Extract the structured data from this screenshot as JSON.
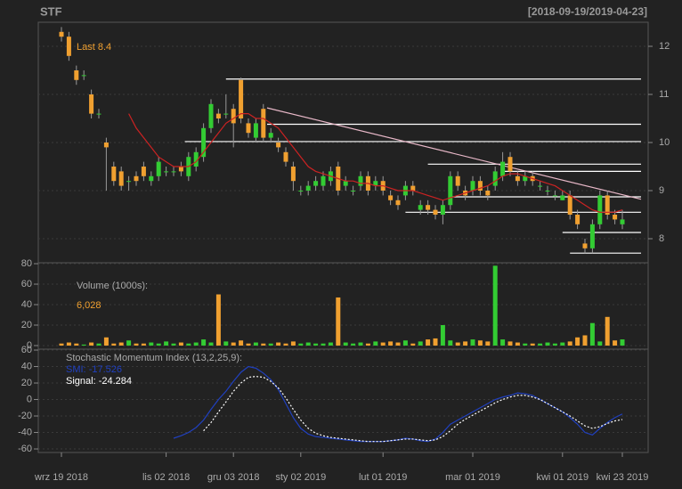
{
  "chart_data": [
    {
      "type": "candlestick",
      "title": "STF",
      "subtitle": "[2018-09-19/2019-04-23]",
      "categories": [
        "wrz 19 2018",
        null,
        null,
        null,
        null,
        null,
        null,
        null,
        null,
        null,
        null,
        null,
        null,
        null,
        "lis 02 2018",
        null,
        null,
        null,
        null,
        null,
        null,
        null,
        null,
        "gru 03 2018",
        null,
        null,
        null,
        null,
        null,
        null,
        null,
        null,
        "sty 02 2019",
        null,
        null,
        null,
        null,
        null,
        null,
        null,
        null,
        null,
        null,
        "lut 01 2019",
        null,
        null,
        null,
        null,
        null,
        null,
        null,
        null,
        null,
        null,
        null,
        "mar 01 2019",
        null,
        null,
        null,
        null,
        null,
        null,
        null,
        null,
        null,
        null,
        null,
        "kwi 01 2019",
        null,
        null,
        null,
        null,
        null,
        null,
        null,
        "kwi 23 2019"
      ],
      "open": [
        12.3,
        12.2,
        11.5,
        11.4,
        11.0,
        10.6,
        10.0,
        9.5,
        9.4,
        9.2,
        9.3,
        9.5,
        9.2,
        9.3,
        9.4,
        9.4,
        9.5,
        9.3,
        9.5,
        9.7,
        10.3,
        10.6,
        10.6,
        10.7,
        11.3,
        10.4,
        10.1,
        10.7,
        10.1,
        10.0,
        9.8,
        9.5,
        9.0,
        9.0,
        9.1,
        9.1,
        9.2,
        9.5,
        9.1,
        9.0,
        9.1,
        9.3,
        9.1,
        9.2,
        8.9,
        8.8,
        8.9,
        9.1,
        8.6,
        8.7,
        8.6,
        8.5,
        8.7,
        9.3,
        9.0,
        9.0,
        9.2,
        9.0,
        9.1,
        9.3,
        9.7,
        9.3,
        9.2,
        9.3,
        9.1,
        9.0,
        8.9,
        8.8,
        8.9,
        8.5,
        7.9,
        7.8,
        8.3,
        8.9,
        8.5,
        8.3
      ],
      "high": [
        12.4,
        12.3,
        11.6,
        11.5,
        11.1,
        10.7,
        10.1,
        9.6,
        9.5,
        9.3,
        9.4,
        9.6,
        9.4,
        9.7,
        9.5,
        9.5,
        9.6,
        9.8,
        9.9,
        10.4,
        10.9,
        10.7,
        11.0,
        10.8,
        11.35,
        10.5,
        10.5,
        10.8,
        10.3,
        10.1,
        9.9,
        9.6,
        9.1,
        9.2,
        9.3,
        9.4,
        9.5,
        9.6,
        9.3,
        9.1,
        9.4,
        9.4,
        9.3,
        9.3,
        9.0,
        8.9,
        9.2,
        9.2,
        8.8,
        8.8,
        8.7,
        8.8,
        9.4,
        9.4,
        9.1,
        9.3,
        9.3,
        9.1,
        9.5,
        9.8,
        9.8,
        9.4,
        9.4,
        9.4,
        9.2,
        9.1,
        9.0,
        9.0,
        9.0,
        8.6,
        8.0,
        8.4,
        9.0,
        9.0,
        8.6,
        8.6
      ],
      "low": [
        12.1,
        11.7,
        11.2,
        11.3,
        10.5,
        10.5,
        9.0,
        9.1,
        9.0,
        9.0,
        9.1,
        9.2,
        9.1,
        9.2,
        9.3,
        9.3,
        9.3,
        9.2,
        9.4,
        9.6,
        10.2,
        10.4,
        10.5,
        9.9,
        10.4,
        10.1,
        10.0,
        10.0,
        10.0,
        9.8,
        9.5,
        9.0,
        8.9,
        8.9,
        9.0,
        9.0,
        9.1,
        8.9,
        9.0,
        8.9,
        9.0,
        8.9,
        9.0,
        8.9,
        8.7,
        8.6,
        8.8,
        8.9,
        8.5,
        8.5,
        8.4,
        8.3,
        8.6,
        9.0,
        8.8,
        8.9,
        8.9,
        8.8,
        9.0,
        9.2,
        9.3,
        9.1,
        9.1,
        9.1,
        9.0,
        8.9,
        8.8,
        8.8,
        8.4,
        8.2,
        7.7,
        7.7,
        8.2,
        8.4,
        8.3,
        8.2
      ],
      "close": [
        12.2,
        11.8,
        11.3,
        11.4,
        10.6,
        10.6,
        9.9,
        9.2,
        9.1,
        9.2,
        9.2,
        9.3,
        9.3,
        9.6,
        9.4,
        9.4,
        9.4,
        9.7,
        9.8,
        10.3,
        10.8,
        10.5,
        10.6,
        10.4,
        10.5,
        10.2,
        10.4,
        10.1,
        10.2,
        9.9,
        9.6,
        9.2,
        9.0,
        9.1,
        9.2,
        9.3,
        9.4,
        9.0,
        9.2,
        9.0,
        9.3,
        9.0,
        9.2,
        9.0,
        8.8,
        8.7,
        9.1,
        9.0,
        8.7,
        8.6,
        8.5,
        8.7,
        9.3,
        9.1,
        8.9,
        9.2,
        9.0,
        8.9,
        9.4,
        9.6,
        9.4,
        9.2,
        9.3,
        9.2,
        9.1,
        9.0,
        8.9,
        8.9,
        8.5,
        8.3,
        7.8,
        8.3,
        8.9,
        8.5,
        8.4,
        8.4
      ],
      "up_color": "#33cc33",
      "down_color": "#f0a030",
      "last_label": "Last",
      "ma": {
        "color": "#cc2222",
        "values": [
          null,
          null,
          null,
          null,
          null,
          null,
          null,
          null,
          null,
          10.6,
          10.3,
          10.1,
          9.9,
          9.7,
          9.6,
          9.5,
          9.5,
          9.5,
          9.6,
          9.8,
          10.0,
          10.2,
          10.4,
          10.5,
          10.6,
          10.6,
          10.5,
          10.5,
          10.4,
          10.3,
          10.1,
          9.9,
          9.7,
          9.5,
          9.4,
          9.35,
          9.3,
          9.25,
          9.2,
          9.2,
          9.15,
          9.15,
          9.1,
          9.1,
          9.05,
          9.0,
          9.0,
          9.0,
          8.95,
          8.9,
          8.85,
          8.8,
          8.85,
          8.9,
          8.95,
          9.0,
          9.05,
          9.1,
          9.2,
          9.3,
          9.35,
          9.35,
          9.3,
          9.25,
          9.2,
          9.15,
          9.1,
          9.0,
          8.9,
          8.8,
          8.7,
          8.6,
          8.55,
          8.55,
          8.55,
          8.6
        ]
      },
      "levels": [
        {
          "value": 11.32,
          "start": 22
        },
        {
          "value": 10.38,
          "start": 27.5
        },
        {
          "value": 10.02,
          "start": 16.5
        },
        {
          "value": 9.55,
          "start": 49
        },
        {
          "value": 9.4,
          "start": 59
        },
        {
          "value": 8.87,
          "start": 52
        },
        {
          "value": 8.55,
          "start": 46
        },
        {
          "value": 8.13,
          "start": 67
        },
        {
          "value": 7.7,
          "start": 68
        }
      ],
      "levels_end": 77.5,
      "trendline": {
        "from": [
          27.5,
          10.72
        ],
        "to": [
          77.5,
          8.82
        ],
        "color": "#e8b8c8"
      },
      "ylim": [
        7.5,
        12.5
      ],
      "yticks": [
        8,
        9,
        10,
        11,
        12
      ],
      "grid": true
    },
    {
      "type": "bar",
      "title": "Volume (1000s):",
      "values": [
        2,
        3,
        2,
        1,
        3,
        2,
        8,
        2,
        3,
        5,
        2,
        2,
        3,
        2,
        4,
        2,
        3,
        2,
        3,
        6,
        3,
        50,
        4,
        3,
        5,
        2,
        3,
        2,
        2,
        3,
        2,
        4,
        2,
        3,
        2,
        2,
        3,
        47,
        3,
        2,
        3,
        2,
        4,
        3,
        4,
        3,
        5,
        2,
        4,
        6,
        7,
        20,
        5,
        3,
        4,
        6,
        5,
        4,
        78,
        6,
        4,
        3,
        2,
        2,
        2,
        3,
        2,
        3,
        4,
        8,
        10,
        22,
        4,
        28,
        5,
        6.028
      ],
      "value_labels": [
        null,
        null,
        null,
        null,
        null,
        null,
        null,
        null,
        null,
        null,
        null,
        null,
        null,
        null,
        null,
        null,
        null,
        null,
        null,
        null,
        null,
        null,
        null,
        null,
        null,
        null,
        null,
        null,
        null,
        null,
        null,
        null,
        null,
        null,
        null,
        null,
        null,
        null,
        null,
        null,
        null,
        null,
        null,
        null,
        null,
        null,
        null,
        null,
        null,
        null,
        null,
        null,
        null,
        null,
        null,
        null,
        null,
        null,
        null,
        null,
        null,
        null,
        null,
        null,
        null,
        null,
        null,
        null,
        null,
        null,
        null,
        null,
        null,
        null,
        null,
        "6,028"
      ],
      "ylim": [
        -3.5,
        80.9
      ],
      "yticks": [
        0,
        20,
        40,
        60,
        80
      ],
      "grid": true
    },
    {
      "type": "line",
      "title": "Stochastic Momentum Index (13,2,25,9):",
      "series": [
        {
          "name": "SMI:",
          "color": "#2040c0",
          "values": [
            null,
            null,
            null,
            null,
            null,
            null,
            null,
            null,
            null,
            null,
            null,
            null,
            null,
            null,
            null,
            -47,
            -44,
            -40,
            -34,
            -25,
            -12,
            0,
            10,
            22,
            33,
            40,
            38,
            32,
            24,
            12,
            -5,
            -22,
            -35,
            -42,
            -45,
            -46,
            -47,
            -48,
            -49,
            -50,
            -51,
            -51,
            -51,
            -51,
            -50,
            -49,
            -47,
            -48,
            -50,
            -51,
            -48,
            -40,
            -30,
            -25,
            -20,
            -15,
            -10,
            -5,
            0,
            3,
            5,
            8,
            7,
            5,
            0,
            -5,
            -10,
            -15,
            -22,
            -30,
            -40,
            -43,
            -35,
            -28,
            -22,
            -17.526
          ]
        },
        {
          "name": "Signal:",
          "color": "#ffffff",
          "dashed": true,
          "values": [
            null,
            null,
            null,
            null,
            null,
            null,
            null,
            null,
            null,
            null,
            null,
            null,
            null,
            null,
            null,
            null,
            null,
            null,
            null,
            -38,
            -28,
            -15,
            -3,
            10,
            20,
            27,
            28,
            27,
            22,
            14,
            2,
            -12,
            -25,
            -35,
            -41,
            -44,
            -46,
            -47,
            -48,
            -49,
            -50,
            -51,
            -51,
            -51,
            -50,
            -49,
            -48,
            -48,
            -49,
            -50,
            -49,
            -45,
            -38,
            -30,
            -24,
            -19,
            -14,
            -9,
            -4,
            0,
            3,
            5,
            5,
            3,
            0,
            -5,
            -10,
            -15,
            -20,
            -26,
            -32,
            -35,
            -33,
            -29,
            -26,
            -24.284
          ]
        }
      ],
      "ylim": [
        -64.3,
        61.1
      ],
      "yticks": [
        -60,
        -40,
        -20,
        0,
        20,
        40,
        60
      ],
      "grid": true
    }
  ]
}
